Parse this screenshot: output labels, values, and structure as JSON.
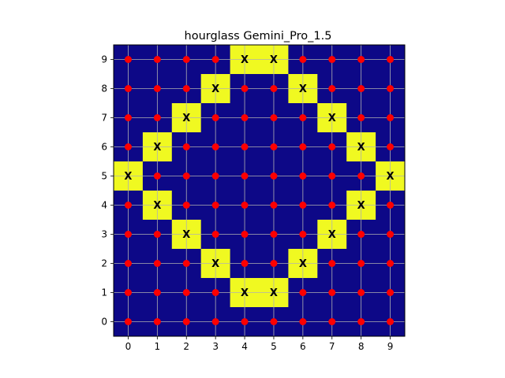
{
  "chart_data": {
    "type": "heatmap",
    "title": "hourglass Gemini_Pro_1.5",
    "xlabel": "",
    "ylabel": "",
    "x_ticks": [
      0,
      1,
      2,
      3,
      4,
      5,
      6,
      7,
      8,
      9
    ],
    "y_ticks": [
      0,
      1,
      2,
      3,
      4,
      5,
      6,
      7,
      8,
      9
    ],
    "xlim": [
      -0.5,
      9.5
    ],
    "ylim": [
      -0.5,
      9.5
    ],
    "grid": true,
    "colors": {
      "background": "#0d0887",
      "filled": "#f0f921",
      "point": "#ff0000",
      "grid": "#b0b0b0"
    },
    "marker_label": "X",
    "filled_cells": [
      [
        4,
        9
      ],
      [
        5,
        9
      ],
      [
        3,
        8
      ],
      [
        6,
        8
      ],
      [
        2,
        7
      ],
      [
        7,
        7
      ],
      [
        1,
        6
      ],
      [
        8,
        6
      ],
      [
        0,
        5
      ],
      [
        9,
        5
      ],
      [
        1,
        4
      ],
      [
        8,
        4
      ],
      [
        2,
        3
      ],
      [
        7,
        3
      ],
      [
        3,
        2
      ],
      [
        6,
        2
      ],
      [
        4,
        1
      ],
      [
        5,
        1
      ]
    ]
  }
}
